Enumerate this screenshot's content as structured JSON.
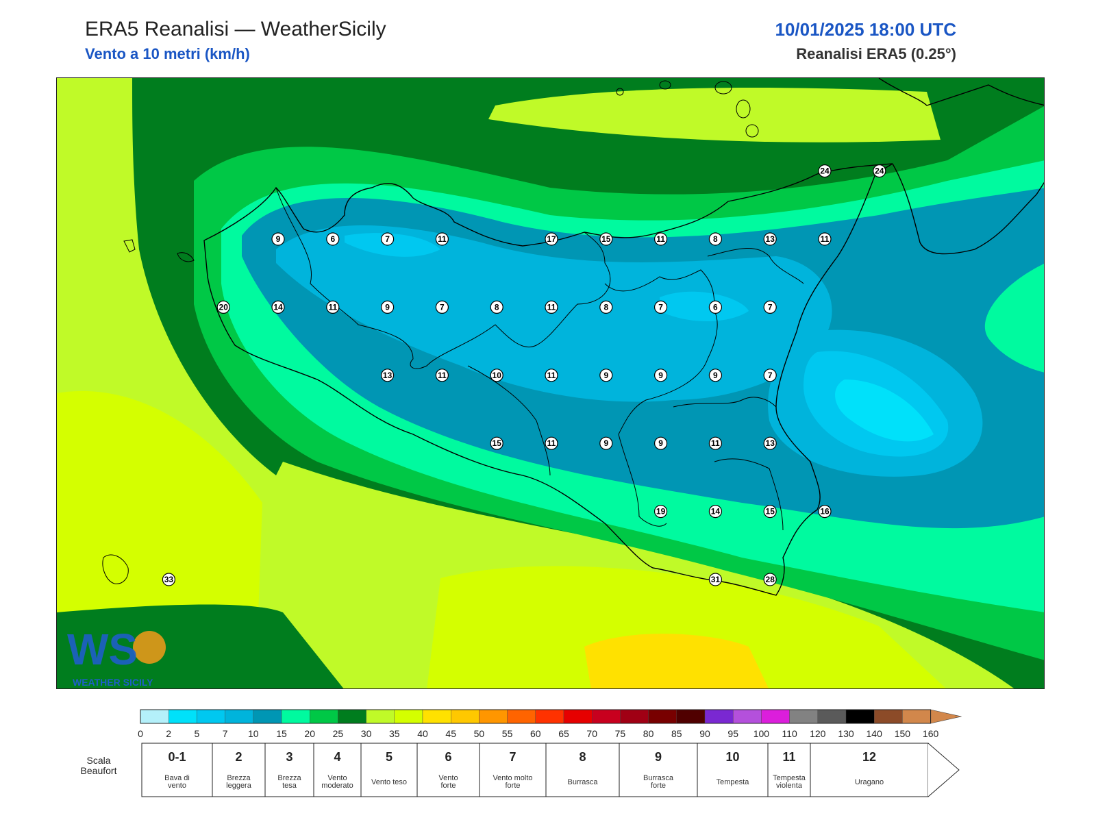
{
  "header": {
    "title": "ERA5 Reanalisi — WeatherSicily",
    "subtitle": "Vento a 10 metri (km/h)",
    "datetime": "10/01/2025 18:00 UTC",
    "source": "Reanalisi ERA5 (0.25°)"
  },
  "logo": {
    "letters": "WS",
    "text": "WEATHER SICILY"
  },
  "stations": [
    {
      "value": "9",
      "x": 0,
      "y": 0
    },
    {
      "value": "6",
      "x": 1,
      "y": 0
    },
    {
      "value": "7",
      "x": 2,
      "y": 0
    },
    {
      "value": "11",
      "x": 3,
      "y": 0
    },
    {
      "value": "17",
      "x": 5,
      "y": 0
    },
    {
      "value": "15",
      "x": 6,
      "y": 0
    },
    {
      "value": "11",
      "x": 7,
      "y": 0
    },
    {
      "value": "8",
      "x": 8,
      "y": 0
    },
    {
      "value": "13",
      "x": 9,
      "y": 0
    },
    {
      "value": "11",
      "x": 10,
      "y": 0
    },
    {
      "value": "24",
      "x": 10,
      "y": -1
    },
    {
      "value": "24",
      "x": 11,
      "y": -1
    },
    {
      "value": "20",
      "x": -1,
      "y": 1
    },
    {
      "value": "14",
      "x": 0,
      "y": 1
    },
    {
      "value": "11",
      "x": 1,
      "y": 1
    },
    {
      "value": "9",
      "x": 2,
      "y": 1
    },
    {
      "value": "7",
      "x": 3,
      "y": 1
    },
    {
      "value": "8",
      "x": 4,
      "y": 1
    },
    {
      "value": "11",
      "x": 5,
      "y": 1
    },
    {
      "value": "8",
      "x": 6,
      "y": 1
    },
    {
      "value": "7",
      "x": 7,
      "y": 1
    },
    {
      "value": "6",
      "x": 8,
      "y": 1
    },
    {
      "value": "7",
      "x": 9,
      "y": 1
    },
    {
      "value": "13",
      "x": 2,
      "y": 2
    },
    {
      "value": "11",
      "x": 3,
      "y": 2
    },
    {
      "value": "10",
      "x": 4,
      "y": 2
    },
    {
      "value": "11",
      "x": 5,
      "y": 2
    },
    {
      "value": "9",
      "x": 6,
      "y": 2
    },
    {
      "value": "9",
      "x": 7,
      "y": 2
    },
    {
      "value": "9",
      "x": 8,
      "y": 2
    },
    {
      "value": "7",
      "x": 9,
      "y": 2
    },
    {
      "value": "15",
      "x": 4,
      "y": 3
    },
    {
      "value": "11",
      "x": 5,
      "y": 3
    },
    {
      "value": "9",
      "x": 6,
      "y": 3
    },
    {
      "value": "9",
      "x": 7,
      "y": 3
    },
    {
      "value": "11",
      "x": 8,
      "y": 3
    },
    {
      "value": "13",
      "x": 9,
      "y": 3
    },
    {
      "value": "19",
      "x": 7,
      "y": 4
    },
    {
      "value": "14",
      "x": 8,
      "y": 4
    },
    {
      "value": "15",
      "x": 9,
      "y": 4
    },
    {
      "value": "16",
      "x": 10,
      "y": 4
    },
    {
      "value": "31",
      "x": 8,
      "y": 5
    },
    {
      "value": "28",
      "x": 9,
      "y": 5
    },
    {
      "value": "33",
      "x": -2,
      "y": 5
    }
  ],
  "colorbar": {
    "colors": [
      "#b4f0fa",
      "#00e1fa",
      "#00c8f0",
      "#00b4dc",
      "#0096b4",
      "#00fa9f",
      "#00c846",
      "#007d1e",
      "#c0fa28",
      "#d4ff00",
      "#ffe100",
      "#ffc800",
      "#ff9600",
      "#ff6400",
      "#ff3200",
      "#e60000",
      "#c8001e",
      "#a00014",
      "#780000",
      "#500000",
      "#7a28d2",
      "#b450dc",
      "#dc1edc",
      "#828282",
      "#5a5a5a",
      "#000000",
      "#8c4b28",
      "#d2874b"
    ],
    "ticks": [
      "0",
      "2",
      "5",
      "7",
      "10",
      "15",
      "20",
      "25",
      "30",
      "35",
      "40",
      "45",
      "50",
      "55",
      "60",
      "65",
      "70",
      "75",
      "80",
      "85",
      "90",
      "95",
      "100",
      "110",
      "120",
      "130",
      "140",
      "150",
      "160"
    ]
  },
  "beaufort": {
    "label_line1": "Scala",
    "label_line2": "Beaufort",
    "levels": [
      {
        "num": "0-1",
        "desc": [
          "Bava di",
          "vento"
        ]
      },
      {
        "num": "2",
        "desc": [
          "Brezza",
          "leggera"
        ]
      },
      {
        "num": "3",
        "desc": [
          "Brezza",
          "tesa"
        ]
      },
      {
        "num": "4",
        "desc": [
          "Vento",
          "moderato"
        ]
      },
      {
        "num": "5",
        "desc": [
          "Vento teso"
        ]
      },
      {
        "num": "6",
        "desc": [
          "Vento",
          "forte"
        ]
      },
      {
        "num": "7",
        "desc": [
          "Vento molto",
          "forte"
        ]
      },
      {
        "num": "8",
        "desc": [
          "Burrasca"
        ]
      },
      {
        "num": "9",
        "desc": [
          "Burrasca",
          "forte"
        ]
      },
      {
        "num": "10",
        "desc": [
          "Tempesta"
        ]
      },
      {
        "num": "11",
        "desc": [
          "Tempesta",
          "violenta"
        ]
      },
      {
        "num": "12",
        "desc": [
          "Uragano"
        ]
      }
    ]
  }
}
